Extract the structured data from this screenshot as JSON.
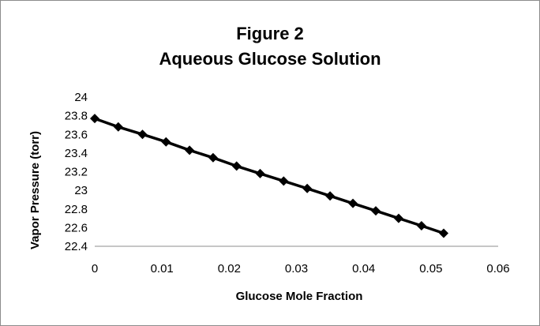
{
  "chart_data": {
    "type": "line",
    "title_line1": "Figure 2",
    "title_line2": "Aqueous Glucose Solution",
    "xlabel": "Glucose Mole Fraction",
    "ylabel": "Vapor Pressure (torr)",
    "xlim": [
      0,
      0.06
    ],
    "ylim": [
      22.4,
      24
    ],
    "x_ticks": [
      "0",
      "0.01",
      "0.02",
      "0.03",
      "0.04",
      "0.05",
      "0.06"
    ],
    "y_ticks": [
      "24",
      "23.8",
      "23.6",
      "23.4",
      "23.2",
      "23",
      "22.8",
      "22.6",
      "22.4"
    ],
    "marker": "diamond",
    "line_color": "#000000",
    "grid": false,
    "series": [
      {
        "x": [
          0,
          0.0035,
          0.0071,
          0.0106,
          0.0141,
          0.0176,
          0.0211,
          0.0246,
          0.0281,
          0.0316,
          0.035,
          0.0384,
          0.0418,
          0.0452,
          0.0486,
          0.0519
        ],
        "y": [
          23.77,
          23.68,
          23.6,
          23.52,
          23.43,
          23.35,
          23.26,
          23.18,
          23.1,
          23.02,
          22.94,
          22.86,
          22.78,
          22.7,
          22.62,
          22.54
        ]
      }
    ]
  }
}
